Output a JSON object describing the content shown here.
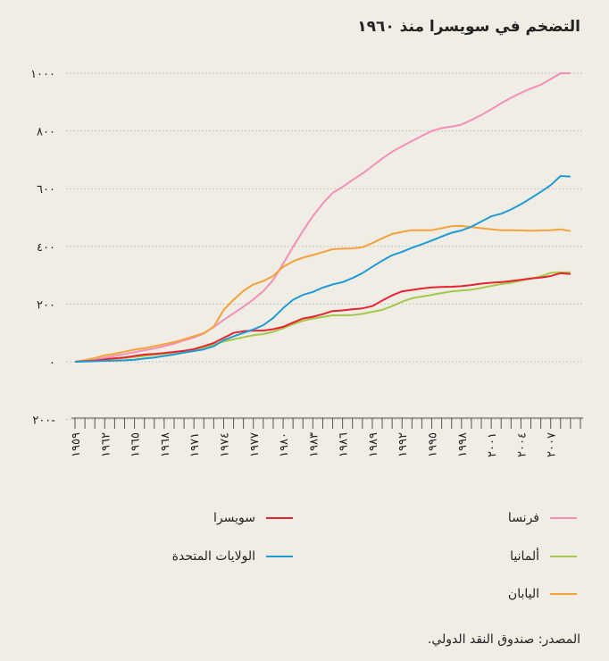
{
  "chart_data": {
    "type": "line",
    "title": "التضخم في سويسرا منذ ١٩٦٠",
    "xlabel": "",
    "ylabel": "",
    "ylim": [
      -200,
      1000
    ],
    "xlim": [
      1959,
      2010
    ],
    "y_ticks": [
      {
        "value": 1000,
        "label": "١٠٠٠"
      },
      {
        "value": 800,
        "label": "٨٠٠"
      },
      {
        "value": 600,
        "label": "٦٠٠"
      },
      {
        "value": 400,
        "label": "٤٠٠"
      },
      {
        "value": 200,
        "label": "٢٠٠"
      },
      {
        "value": 0,
        "label": "٠"
      },
      {
        "value": -200,
        "label": "٢٠٠-"
      }
    ],
    "x_tick_labels": [
      {
        "value": 1959,
        "label": "١٩٥٩"
      },
      {
        "value": 1962,
        "label": "١٩٦٢"
      },
      {
        "value": 1965,
        "label": "١٩٦٥"
      },
      {
        "value": 1968,
        "label": "١٩٦٨"
      },
      {
        "value": 1971,
        "label": "١٩٧١"
      },
      {
        "value": 1974,
        "label": "١٩٧٤"
      },
      {
        "value": 1977,
        "label": "١٩٧٧"
      },
      {
        "value": 1980,
        "label": "١٩٨٠"
      },
      {
        "value": 1983,
        "label": "١٩٨٣"
      },
      {
        "value": 1986,
        "label": "١٩٨٦"
      },
      {
        "value": 1989,
        "label": "١٩٨٩"
      },
      {
        "value": 1992,
        "label": "١٩٩٢"
      },
      {
        "value": 1995,
        "label": "١٩٩٥"
      },
      {
        "value": 1998,
        "label": "١٩٩٨"
      },
      {
        "value": 2001,
        "label": "٢٠٠١"
      },
      {
        "value": 2004,
        "label": "٢٠٠٤"
      },
      {
        "value": 2007,
        "label": "٢٠٠٧"
      }
    ],
    "x": [
      1959,
      1960,
      1961,
      1962,
      1963,
      1964,
      1965,
      1966,
      1967,
      1968,
      1969,
      1970,
      1971,
      1972,
      1973,
      1974,
      1975,
      1976,
      1977,
      1978,
      1979,
      1980,
      1981,
      1982,
      1983,
      1984,
      1985,
      1986,
      1987,
      1988,
      1989,
      1990,
      1991,
      1992,
      1993,
      1994,
      1995,
      1996,
      1997,
      1998,
      1999,
      2000,
      2001,
      2002,
      2003,
      2004,
      2005,
      2006,
      2007,
      2008,
      2009
    ],
    "series": [
      {
        "name": "فرنسا",
        "color": "#f48fb8",
        "values": [
          0,
          4,
          8,
          14,
          20,
          27,
          33,
          40,
          46,
          54,
          63,
          74,
          84,
          98,
          120,
          145,
          168,
          191,
          216,
          245,
          284,
          340,
          398,
          454,
          505,
          549,
          585,
          606,
          630,
          652,
          678,
          704,
          728,
          747,
          765,
          783,
          800,
          810,
          815,
          822,
          838,
          855,
          875,
          896,
          915,
          932,
          947,
          960,
          980,
          1000,
          1000
        ]
      },
      {
        "name": "ألمانيا",
        "color": "#a5c84a",
        "values": [
          0,
          2,
          4,
          7,
          10,
          13,
          16,
          20,
          24,
          28,
          32,
          36,
          42,
          50,
          60,
          70,
          78,
          85,
          92,
          96,
          104,
          116,
          130,
          142,
          150,
          155,
          161,
          161,
          162,
          166,
          173,
          180,
          193,
          208,
          220,
          226,
          232,
          238,
          244,
          247,
          250,
          256,
          263,
          269,
          274,
          281,
          288,
          296,
          308,
          310,
          310
        ]
      },
      {
        "name": "اليابان",
        "color": "#f5a23a",
        "values": [
          0,
          6,
          13,
          22,
          28,
          35,
          42,
          47,
          54,
          61,
          68,
          78,
          89,
          99,
          122,
          180,
          215,
          246,
          268,
          280,
          298,
          329,
          348,
          361,
          370,
          380,
          390,
          392,
          393,
          397,
          411,
          428,
          443,
          450,
          456,
          456,
          456,
          463,
          470,
          471,
          467,
          463,
          459,
          456,
          456,
          455,
          454,
          455,
          456,
          459,
          453
        ]
      },
      {
        "name": "سويسرا",
        "color": "#e8232f",
        "values": [
          0,
          2,
          4,
          8,
          12,
          15,
          20,
          25,
          27,
          30,
          34,
          38,
          44,
          54,
          65,
          83,
          100,
          106,
          108,
          108,
          113,
          121,
          136,
          150,
          156,
          165,
          176,
          178,
          182,
          185,
          193,
          212,
          230,
          244,
          249,
          254,
          258,
          259,
          260,
          262,
          266,
          271,
          274,
          276,
          280,
          284,
          289,
          292,
          297,
          307,
          304
        ]
      },
      {
        "name": "الولايات المتحدة",
        "color": "#1e9ad6",
        "values": [
          0,
          1,
          2,
          3,
          4,
          5,
          7,
          11,
          15,
          20,
          25,
          32,
          37,
          43,
          54,
          75,
          88,
          100,
          112,
          127,
          152,
          186,
          215,
          232,
          242,
          257,
          268,
          276,
          290,
          307,
          329,
          350,
          369,
          381,
          395,
          407,
          420,
          434,
          447,
          455,
          468,
          486,
          504,
          513,
          528,
          546,
          567,
          589,
          612,
          644,
          642
        ]
      }
    ]
  },
  "legend": [
    {
      "label": "سويسرا",
      "color": "#e8232f"
    },
    {
      "label": "فرنسا",
      "color": "#f48fb8"
    },
    {
      "label": "الولايات المتحدة",
      "color": "#1e9ad6"
    },
    {
      "label": "ألمانيا",
      "color": "#a5c84a"
    },
    {
      "label": "اليابان",
      "color": "#f5a23a"
    }
  ],
  "source": "المصدر: صندوق النقد الدولي."
}
